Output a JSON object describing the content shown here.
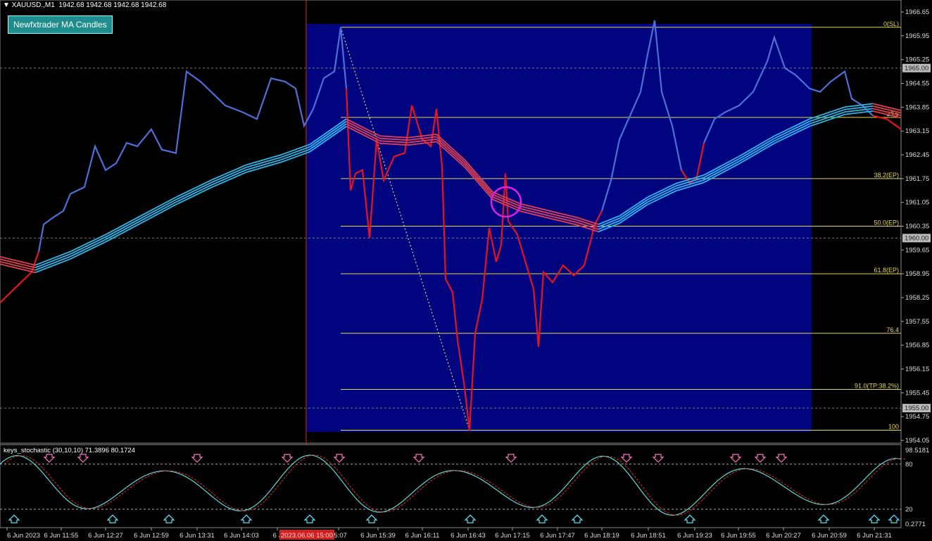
{
  "header": {
    "symbol": "XAUUSD.,M1",
    "ohlc": "1942.68 1942.68 1942.68 1942.68",
    "indicator_button": "Newfxtrader MA Candles"
  },
  "chart_data": {
    "type": "line",
    "price_axis": {
      "ticks": [
        "1966.65",
        "1965.95",
        "1965.25",
        "1964.55",
        "1963.85",
        "1963.15",
        "1962.45",
        "1961.75",
        "1961.05",
        "1960.35",
        "1959.65",
        "1958.95",
        "1958.25",
        "1957.55",
        "1956.85",
        "1956.15",
        "1955.45",
        "1954.75",
        "1954.05"
      ],
      "highlight_labels": [
        "1965.00",
        "1960.00",
        "1955.00"
      ]
    },
    "time_axis": {
      "labels": [
        "6 Jun 2023",
        "6 Jun 11:55",
        "6 Jun 12:27",
        "6 Jun 12:59",
        "6 Jun 13:31",
        "6 Jun 14:03",
        "6 J",
        "15:07",
        "6 Jun 15:39",
        "6 Jun 16:11",
        "6 Jun 16:43",
        "6 Jun 17:15",
        "6 Jun 17:47",
        "6 Jun 18:19",
        "6 Jun 18:51",
        "6 Jun 19:23",
        "6 Jun 19:55",
        "6 Jun 20:27",
        "6 Jun 20:59",
        "6 Jun 21:31"
      ],
      "cursor_label": "2023.06.06 15:00"
    },
    "fib_levels": [
      {
        "label": "0(SL)",
        "price": 1966.2
      },
      {
        "label": "23.6",
        "price": 1963.55
      },
      {
        "label": "38.2(EP)",
        "price": 1961.75
      },
      {
        "label": "50.0(EP)",
        "price": 1960.35
      },
      {
        "label": "61.8(EP)",
        "price": 1958.95
      },
      {
        "label": "76.4",
        "price": 1957.2
      },
      {
        "label": "91.0(TP:38.2%)",
        "price": 1955.55
      },
      {
        "label": "100",
        "price": 1954.35
      }
    ],
    "oscillator": {
      "title": "keys_stochastic (30,10,10) 71.3896 80.1724",
      "axis_labels": [
        "98.5181",
        "80",
        "20",
        "0.2771"
      ],
      "levels": [
        80,
        20
      ]
    },
    "colors": {
      "bull": "#4f6fd8",
      "bear": "#e8141c",
      "ma_up": "#2bb8ee",
      "ma_down": "#e04050",
      "zone": "#00047f",
      "fib": "#e6d94a",
      "osc_main": "#5fd9d9",
      "osc_signal": "#e03030",
      "marker_circle": "#e020e0"
    }
  }
}
